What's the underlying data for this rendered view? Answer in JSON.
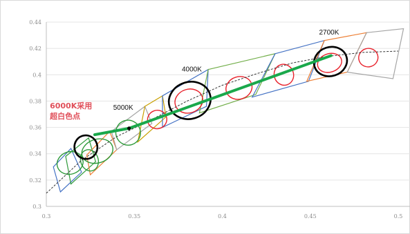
{
  "chart_data": {
    "type": "scatter",
    "title": "",
    "xlabel": "",
    "ylabel": "",
    "xlim": [
      0.3,
      0.5
    ],
    "ylim": [
      0.3,
      0.44
    ],
    "x_ticks": [
      "0.3",
      "0.35",
      "0.4",
      "0.45",
      "0.5"
    ],
    "y_ticks": [
      "0.3",
      "0.32",
      "0.34",
      "0.36",
      "0.38",
      "0.4",
      "0.42",
      "0.44"
    ],
    "grid": "horizontal",
    "colors": {
      "planckian_locus": "#333333",
      "trend": "#1aa84b",
      "black_ellipse": "#000000",
      "red_ellipse": "#e8202a",
      "green_ellipse": "#2e9a3a"
    },
    "planckian_locus": [
      [
        0.3,
        0.31
      ],
      [
        0.32,
        0.335
      ],
      [
        0.34,
        0.353
      ],
      [
        0.36,
        0.366
      ],
      [
        0.38,
        0.38
      ],
      [
        0.4,
        0.392
      ],
      [
        0.42,
        0.401
      ],
      [
        0.44,
        0.409
      ],
      [
        0.46,
        0.414
      ],
      [
        0.48,
        0.417
      ],
      [
        0.5,
        0.418
      ]
    ],
    "trend_line": [
      [
        0.3275,
        0.3545
      ],
      [
        0.347,
        0.3593
      ],
      [
        0.4618,
        0.4145
      ]
    ],
    "marker_point": [
      0.347,
      0.3593
    ],
    "quadrangles": [
      {
        "color": "#4472c4",
        "points": [
          [
            0.304,
            0.33
          ],
          [
            0.314,
            0.344
          ],
          [
            0.32,
            0.326
          ],
          [
            0.308,
            0.311
          ]
        ]
      },
      {
        "color": "#2e9a3a",
        "points": [
          [
            0.311,
            0.338
          ],
          [
            0.324,
            0.352
          ],
          [
            0.328,
            0.334
          ],
          [
            0.314,
            0.317
          ]
        ]
      },
      {
        "color": "#ed7d31",
        "points": [
          [
            0.323,
            0.339
          ],
          [
            0.336,
            0.357
          ],
          [
            0.34,
            0.343
          ],
          [
            0.325,
            0.324
          ]
        ]
      },
      {
        "color": "#a5a5a5",
        "points": [
          [
            0.337,
            0.357
          ],
          [
            0.356,
            0.376
          ],
          [
            0.36,
            0.363
          ],
          [
            0.34,
            0.343
          ]
        ]
      },
      {
        "color": "#c9a000",
        "points": [
          [
            0.356,
            0.376
          ],
          [
            0.366,
            0.384
          ],
          [
            0.368,
            0.368
          ],
          [
            0.352,
            0.349
          ]
        ]
      },
      {
        "color": "#4472c4",
        "points": [
          [
            0.366,
            0.384
          ],
          [
            0.392,
            0.404
          ],
          [
            0.391,
            0.376
          ],
          [
            0.366,
            0.36
          ]
        ]
      },
      {
        "color": "#70ad47",
        "points": [
          [
            0.392,
            0.404
          ],
          [
            0.43,
            0.416
          ],
          [
            0.419,
            0.385
          ],
          [
            0.387,
            0.371
          ]
        ]
      },
      {
        "color": "#4472c4",
        "points": [
          [
            0.43,
            0.416
          ],
          [
            0.458,
            0.426
          ],
          [
            0.449,
            0.395
          ],
          [
            0.417,
            0.383
          ]
        ]
      },
      {
        "color": "#ed7d31",
        "points": [
          [
            0.458,
            0.426
          ],
          [
            0.482,
            0.432
          ],
          [
            0.471,
            0.402
          ],
          [
            0.448,
            0.395
          ]
        ]
      },
      {
        "color": "#a5a5a5",
        "points": [
          [
            0.482,
            0.432
          ],
          [
            0.503,
            0.435
          ],
          [
            0.497,
            0.397
          ],
          [
            0.471,
            0.402
          ]
        ]
      }
    ],
    "ellipses": [
      {
        "color": "#2e9a3a",
        "cx": 0.3135,
        "cy": 0.333,
        "rx": 0.0075,
        "ry": 0.0085
      },
      {
        "color": "#2e9a3a",
        "cx": 0.3245,
        "cy": 0.335,
        "rx": 0.005,
        "ry": 0.0082
      },
      {
        "color": "#2e9a3a",
        "cx": 0.329,
        "cy": 0.342,
        "rx": 0.009,
        "ry": 0.009
      },
      {
        "color": "#2e9a3a",
        "cx": 0.3465,
        "cy": 0.356,
        "rx": 0.007,
        "ry": 0.0095
      },
      {
        "color": "#000000",
        "cx": 0.3225,
        "cy": 0.345,
        "rx": 0.0065,
        "ry": 0.009
      },
      {
        "color": "#e8202a",
        "cx": 0.363,
        "cy": 0.366,
        "rx": 0.0055,
        "ry": 0.007
      },
      {
        "color": "#e8202a",
        "cx": 0.381,
        "cy": 0.38,
        "rx": 0.008,
        "ry": 0.009
      },
      {
        "color": "#000000",
        "cx": 0.3815,
        "cy": 0.3805,
        "rx": 0.012,
        "ry": 0.014
      },
      {
        "color": "#e8202a",
        "cx": 0.4095,
        "cy": 0.39,
        "rx": 0.0075,
        "ry": 0.0085
      },
      {
        "color": "#e8202a",
        "cx": 0.435,
        "cy": 0.4,
        "rx": 0.0055,
        "ry": 0.008
      },
      {
        "color": "#e8202a",
        "cx": 0.461,
        "cy": 0.409,
        "rx": 0.007,
        "ry": 0.007
      },
      {
        "color": "#000000",
        "cx": 0.4615,
        "cy": 0.41,
        "rx": 0.0095,
        "ry": 0.011
      },
      {
        "color": "#e8202a",
        "cx": 0.483,
        "cy": 0.413,
        "rx": 0.0055,
        "ry": 0.007
      }
    ],
    "annotations": [
      {
        "text": "2700K",
        "x": 0.455,
        "y": 0.4305,
        "kind": "label"
      },
      {
        "text": "4000K",
        "x": 0.377,
        "y": 0.4025,
        "kind": "label"
      },
      {
        "text": "5000K",
        "x": 0.338,
        "y": 0.3735,
        "kind": "label"
      },
      {
        "text": "6000K采用",
        "x": 0.302,
        "y": 0.3745,
        "kind": "callout"
      },
      {
        "text": "超白色点",
        "x": 0.302,
        "y": 0.3665,
        "kind": "callout"
      }
    ]
  }
}
